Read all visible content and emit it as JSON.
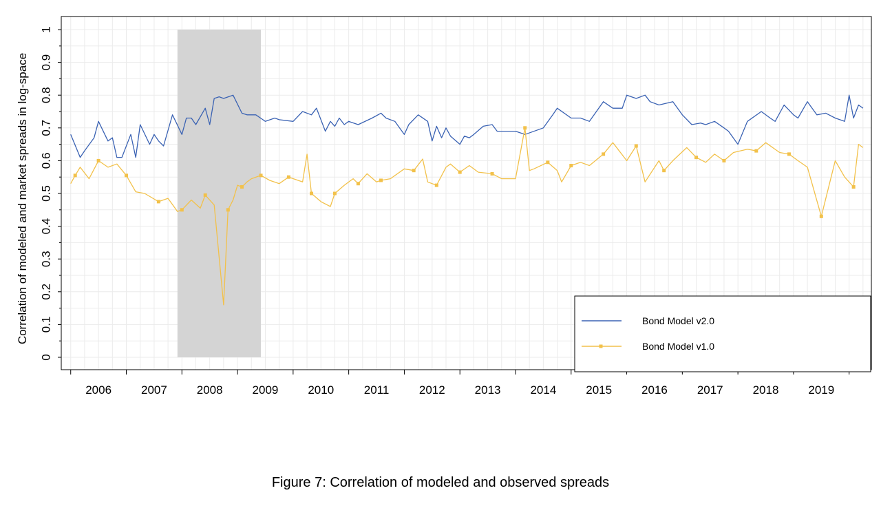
{
  "caption": "Figure 7:   Correlation of modeled and observed spreads",
  "colors": {
    "v2": "#3a62b3",
    "v1": "#f2c14a",
    "shade": "#d4d4d4",
    "grid": "#ebebeb"
  },
  "chart_data": {
    "type": "line",
    "title": "",
    "xlabel": "",
    "ylabel": "Correlation of modeled and market spreads in log-space",
    "ylim": [
      0,
      1
    ],
    "yticks": [
      "0",
      "0.1",
      "0.2",
      "0.3",
      "0.4",
      "0.5",
      "0.6",
      "0.7",
      "0.8",
      "0.9",
      "1"
    ],
    "xlim": [
      2006.0,
      2020.25
    ],
    "xticks": [
      "2006",
      "2007",
      "2008",
      "2009",
      "2010",
      "2011",
      "2012",
      "2013",
      "2014",
      "2015",
      "2016",
      "2017",
      "2018",
      "2019"
    ],
    "grid": true,
    "legend_position": "bottom-right",
    "shaded_period": {
      "from": 2007.92,
      "to": 2009.42
    },
    "series": [
      {
        "name": "Bond Model v2.0",
        "x": [
          2006.0,
          2006.17,
          2006.25,
          2006.42,
          2006.5,
          2006.67,
          2006.75,
          2006.83,
          2006.92,
          2007.08,
          2007.17,
          2007.25,
          2007.42,
          2007.5,
          2007.58,
          2007.67,
          2007.83,
          2008.0,
          2008.08,
          2008.17,
          2008.25,
          2008.42,
          2008.5,
          2008.58,
          2008.67,
          2008.75,
          2008.92,
          2009.08,
          2009.17,
          2009.25,
          2009.33,
          2009.5,
          2009.67,
          2009.75,
          2010.0,
          2010.17,
          2010.33,
          2010.42,
          2010.58,
          2010.67,
          2010.75,
          2010.83,
          2010.92,
          2011.0,
          2011.17,
          2011.42,
          2011.58,
          2011.67,
          2011.83,
          2012.0,
          2012.08,
          2012.25,
          2012.42,
          2012.5,
          2012.58,
          2012.67,
          2012.75,
          2012.83,
          2013.0,
          2013.08,
          2013.17,
          2013.25,
          2013.42,
          2013.58,
          2013.67,
          2014.0,
          2014.17,
          2014.5,
          2014.67,
          2014.75,
          2015.0,
          2015.17,
          2015.33,
          2015.58,
          2015.75,
          2015.92,
          2016.0,
          2016.17,
          2016.33,
          2016.42,
          2016.58,
          2016.83,
          2017.0,
          2017.17,
          2017.33,
          2017.42,
          2017.58,
          2017.75,
          2017.83,
          2018.0,
          2018.17,
          2018.42,
          2018.58,
          2018.67,
          2018.83,
          2019.0,
          2019.08,
          2019.25,
          2019.42,
          2019.58,
          2019.75,
          2019.92,
          2020.0,
          2020.08,
          2020.17,
          2020.25
        ],
        "values": [
          0.68,
          0.61,
          0.63,
          0.67,
          0.72,
          0.66,
          0.67,
          0.61,
          0.61,
          0.68,
          0.61,
          0.71,
          0.65,
          0.68,
          0.66,
          0.645,
          0.74,
          0.68,
          0.73,
          0.73,
          0.71,
          0.76,
          0.71,
          0.79,
          0.795,
          0.79,
          0.8,
          0.745,
          0.74,
          0.74,
          0.74,
          0.72,
          0.73,
          0.725,
          0.72,
          0.75,
          0.74,
          0.76,
          0.69,
          0.72,
          0.705,
          0.73,
          0.71,
          0.72,
          0.71,
          0.73,
          0.745,
          0.73,
          0.72,
          0.68,
          0.71,
          0.74,
          0.72,
          0.66,
          0.705,
          0.67,
          0.7,
          0.675,
          0.65,
          0.675,
          0.67,
          0.68,
          0.705,
          0.71,
          0.69,
          0.69,
          0.68,
          0.7,
          0.74,
          0.76,
          0.73,
          0.73,
          0.72,
          0.78,
          0.76,
          0.76,
          0.8,
          0.79,
          0.8,
          0.78,
          0.77,
          0.78,
          0.74,
          0.71,
          0.715,
          0.71,
          0.72,
          0.7,
          0.69,
          0.65,
          0.72,
          0.75,
          0.73,
          0.72,
          0.77,
          0.74,
          0.73,
          0.78,
          0.74,
          0.745,
          0.73,
          0.72,
          0.8,
          0.73,
          0.77,
          0.76
        ]
      },
      {
        "name": "Bond Model v1.0",
        "x": [
          2006.0,
          2006.08,
          2006.17,
          2006.33,
          2006.5,
          2006.67,
          2006.83,
          2007.0,
          2007.17,
          2007.33,
          2007.58,
          2007.75,
          2007.92,
          2008.0,
          2008.17,
          2008.33,
          2008.42,
          2008.58,
          2008.75,
          2008.83,
          2008.92,
          2009.0,
          2009.08,
          2009.17,
          2009.25,
          2009.42,
          2009.58,
          2009.75,
          2009.92,
          2010.17,
          2010.25,
          2010.33,
          2010.5,
          2010.67,
          2010.75,
          2010.92,
          2011.08,
          2011.17,
          2011.33,
          2011.5,
          2011.58,
          2011.75,
          2012.0,
          2012.17,
          2012.33,
          2012.42,
          2012.58,
          2012.75,
          2012.83,
          2013.0,
          2013.17,
          2013.33,
          2013.58,
          2013.75,
          2014.0,
          2014.17,
          2014.25,
          2014.33,
          2014.58,
          2014.75,
          2014.83,
          2015.0,
          2015.17,
          2015.33,
          2015.58,
          2015.75,
          2016.0,
          2016.17,
          2016.33,
          2016.58,
          2016.67,
          2016.83,
          2017.08,
          2017.25,
          2017.42,
          2017.58,
          2017.75,
          2017.92,
          2018.17,
          2018.33,
          2018.5,
          2018.75,
          2018.92,
          2019.08,
          2019.25,
          2019.5,
          2019.75,
          2019.92,
          2020.08,
          2020.17,
          2020.25
        ],
        "values": [
          0.53,
          0.555,
          0.58,
          0.545,
          0.6,
          0.58,
          0.59,
          0.555,
          0.505,
          0.5,
          0.475,
          0.485,
          0.445,
          0.45,
          0.48,
          0.455,
          0.495,
          0.465,
          0.16,
          0.45,
          0.48,
          0.525,
          0.52,
          0.535,
          0.545,
          0.555,
          0.54,
          0.53,
          0.55,
          0.535,
          0.62,
          0.5,
          0.475,
          0.46,
          0.5,
          0.525,
          0.545,
          0.53,
          0.56,
          0.535,
          0.54,
          0.545,
          0.575,
          0.57,
          0.605,
          0.535,
          0.525,
          0.58,
          0.59,
          0.565,
          0.585,
          0.565,
          0.56,
          0.545,
          0.545,
          0.7,
          0.57,
          0.575,
          0.595,
          0.57,
          0.535,
          0.585,
          0.595,
          0.585,
          0.62,
          0.655,
          0.6,
          0.645,
          0.535,
          0.6,
          0.57,
          0.6,
          0.64,
          0.61,
          0.595,
          0.62,
          0.6,
          0.625,
          0.635,
          0.63,
          0.655,
          0.625,
          0.62,
          0.6,
          0.58,
          0.43,
          0.6,
          0.55,
          0.52,
          0.65,
          0.64
        ]
      }
    ]
  }
}
